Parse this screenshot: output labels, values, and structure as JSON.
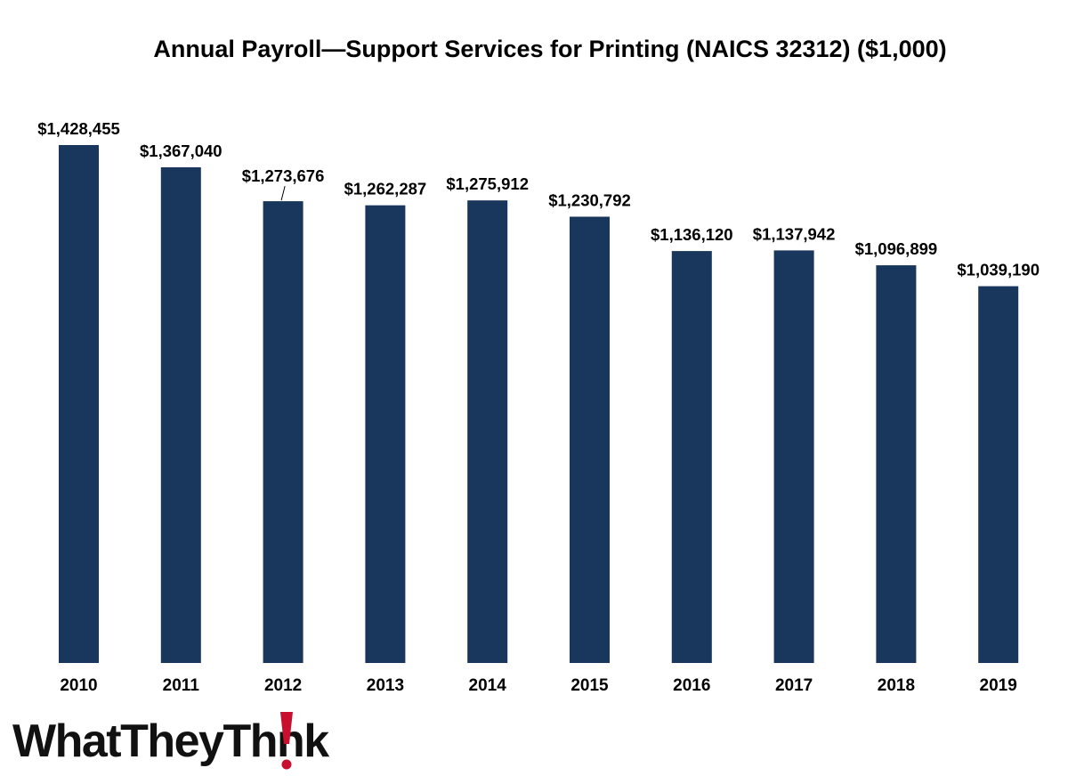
{
  "chart_data": {
    "type": "bar",
    "title": "Annual Payroll—Support Services for Printing (NAICS 32312) ($1,000)",
    "xlabel": "",
    "ylabel": "",
    "categories": [
      "2010",
      "2011",
      "2012",
      "2013",
      "2014",
      "2015",
      "2016",
      "2017",
      "2018",
      "2019"
    ],
    "values": [
      1428455,
      1367040,
      1273676,
      1262287,
      1275912,
      1230792,
      1136120,
      1137942,
      1096899,
      1039190
    ],
    "data_labels": [
      "$1,428,455",
      "$1,367,040",
      "$1,273,676",
      "$1,262,287",
      "$1,275,912",
      "$1,230,792",
      "$1,136,120",
      "$1,137,942",
      "$1,096,899",
      "$1,039,190"
    ],
    "ylim": [
      0,
      1428455
    ],
    "grid": false,
    "legend": "none",
    "bar_color": "#19365c"
  },
  "brand": {
    "logo_text_before": "WhatTheyTh",
    "logo_text_after": "nk",
    "logo_alt": "WhatTheyThink",
    "text_color": "#111111",
    "accent_color": "#c8102e"
  }
}
